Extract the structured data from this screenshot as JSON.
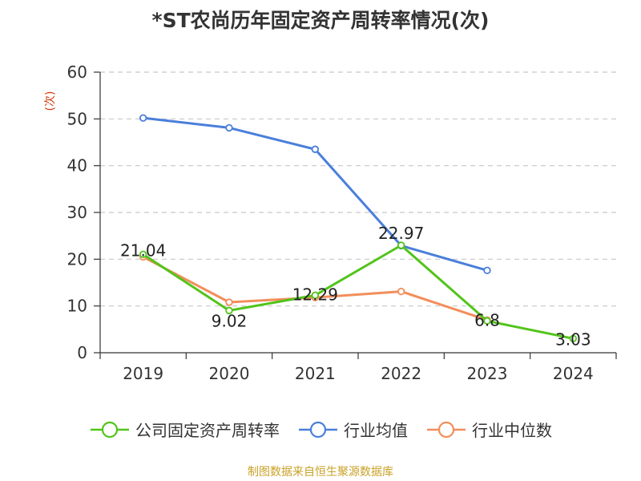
{
  "title": "*ST农尚历年固定资产周转率情况(次)",
  "source_note": "制图数据来自恒生聚源数据库",
  "chart_data": {
    "type": "line",
    "title": "*ST农尚历年固定资产周转率情况(次)",
    "xlabel": "",
    "ylabel": "(次)",
    "categories": [
      "2019",
      "2020",
      "2021",
      "2022",
      "2023",
      "2024"
    ],
    "ylim": [
      0,
      60
    ],
    "yticks": [
      0,
      10,
      20,
      30,
      40,
      50,
      60
    ],
    "grid": true,
    "legend_position": "bottom",
    "series": [
      {
        "name": "公司固定资产周转率",
        "color": "#52c41a",
        "values": [
          21.04,
          9.02,
          12.29,
          22.97,
          6.8,
          3.03
        ],
        "labels": [
          "21.04",
          "9.02",
          "12.29",
          "22.97",
          "6.8",
          "3.03"
        ],
        "show_labels": true
      },
      {
        "name": "行业均值",
        "color": "#4a7fdb",
        "values": [
          50.2,
          48.1,
          43.5,
          22.9,
          17.6,
          null
        ],
        "show_labels": false
      },
      {
        "name": "行业中位数",
        "color": "#f28e5b",
        "values": [
          20.5,
          10.8,
          11.8,
          13.1,
          7.0,
          null
        ],
        "show_labels": false
      }
    ]
  }
}
